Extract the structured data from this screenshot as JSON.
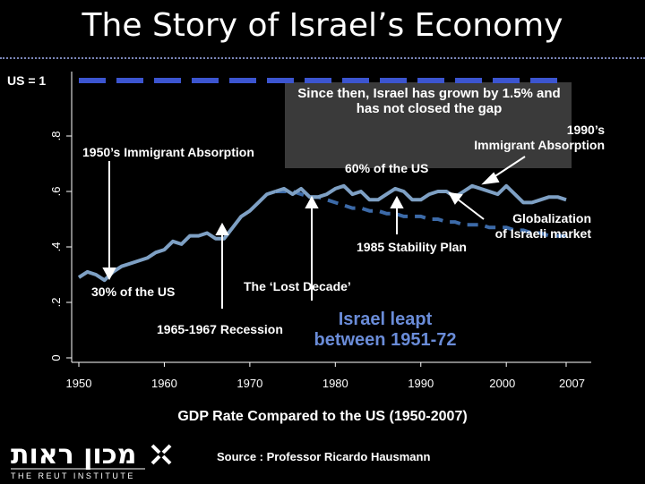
{
  "slide": {
    "title": "The Story of Israel’s Economy",
    "caption": "GDP Rate Compared to the US (1950-2007)",
    "source": "Source : Professor Ricardo Hausmann",
    "logo": {
      "hebrew_text": "מכון ראות",
      "english_text": "THE REUT INSTITUTE",
      "colors": {
        "text": "#ffffff",
        "accent": "#ffffff"
      }
    }
  },
  "annotations": {
    "us_label": "US = 1",
    "since_then": "Since then, Israel has grown by 1.5% and has not closed the gap",
    "immigrant_1990_line1": "1990’s",
    "immigrant_1990_line2": "Immigrant Absorption",
    "immigrant_1950": "1950’s Immigrant Absorption",
    "sixty_pct": "60% of the US",
    "globalization_line1": "Globalization",
    "globalization_line2": "of Israeli market",
    "stability_plan": "1985 Stability Plan",
    "thirty_pct": "30% of the US",
    "lost_decade": "The ‘Lost Decade’",
    "recession": "1965-1967 Recession",
    "leapt_line1": "Israel leapt",
    "leapt_line2": "between 1951-72"
  },
  "colors": {
    "background": "#000000",
    "israel_series": "#7ea0c4",
    "israel_dashed": "#3c6aa8",
    "us_line": "#3c55d0",
    "text": "#ffffff",
    "callout_box": "#3a3a3a",
    "leapt_text": "#6a8cd8"
  },
  "chart_data": {
    "type": "line",
    "title": "GDP Rate Compared to the US (1950-2007)",
    "xlabel": "",
    "ylabel": "",
    "xlim": [
      1950,
      2007
    ],
    "ylim": [
      0,
      1
    ],
    "x_ticks": [
      "1950",
      "1960",
      "1970",
      "1980",
      "1990",
      "2000",
      "2007"
    ],
    "x_tick_values": [
      1950,
      1960,
      1970,
      1980,
      1990,
      2000,
      2007
    ],
    "y_ticks": [
      "0",
      ".2",
      ".4",
      ".6",
      ".8"
    ],
    "y_tick_values": [
      0,
      0.2,
      0.4,
      0.6,
      0.8
    ],
    "grid": false,
    "legend": "none",
    "series": [
      {
        "name": "",
        "style": "solid",
        "x": [
          1950,
          1951,
          1952,
          1953,
          1954,
          1955,
          1956,
          1957,
          1958,
          1959,
          1960,
          1961,
          1962,
          1963,
          1964,
          1965,
          1966,
          1967,
          1968,
          1969,
          1970,
          1971,
          1972,
          1973
        ],
        "y": [
          0.29,
          0.31,
          0.3,
          0.28,
          0.31,
          0.33,
          0.34,
          0.35,
          0.36,
          0.38,
          0.39,
          0.42,
          0.41,
          0.44,
          0.44,
          0.45,
          0.43,
          0.43,
          0.47,
          0.51,
          0.53,
          0.56,
          0.59,
          0.6
        ]
      },
      {
        "name": "",
        "style": "dashed",
        "x": [
          1973,
          1974,
          1975,
          1976,
          1977,
          1978,
          1979,
          1980,
          1981,
          1982,
          1983,
          1984,
          1985,
          1986,
          1987,
          1988,
          1989,
          1990,
          1991,
          1992,
          1993,
          1994,
          1995,
          1996,
          1997,
          1998,
          1999,
          2000,
          2001,
          2002,
          2003,
          2004,
          2005,
          2006,
          2007
        ],
        "y": [
          0.6,
          0.6,
          0.6,
          0.59,
          0.58,
          0.58,
          0.57,
          0.56,
          0.55,
          0.54,
          0.54,
          0.53,
          0.53,
          0.52,
          0.52,
          0.51,
          0.51,
          0.51,
          0.5,
          0.5,
          0.49,
          0.49,
          0.48,
          0.48,
          0.48,
          0.47,
          0.47,
          0.47,
          0.46,
          0.46,
          0.45,
          0.45,
          0.44,
          0.44,
          0.44
        ]
      },
      {
        "name": "",
        "style": "solid",
        "x": [
          1973,
          1974,
          1975,
          1976,
          1977,
          1978,
          1979,
          1980,
          1981,
          1982,
          1983,
          1984,
          1985,
          1986,
          1987,
          1988,
          1989,
          1990,
          1991,
          1992,
          1993,
          1994,
          1995,
          1996,
          1997,
          1998,
          1999,
          2000,
          2001,
          2002,
          2003,
          2004,
          2005,
          2006,
          2007
        ],
        "y": [
          0.6,
          0.61,
          0.59,
          0.61,
          0.58,
          0.58,
          0.59,
          0.61,
          0.62,
          0.59,
          0.6,
          0.57,
          0.57,
          0.59,
          0.61,
          0.6,
          0.57,
          0.57,
          0.59,
          0.6,
          0.6,
          0.58,
          0.6,
          0.62,
          0.61,
          0.6,
          0.59,
          0.62,
          0.59,
          0.56,
          0.56,
          0.57,
          0.58,
          0.58,
          0.57
        ]
      },
      {
        "name": "US = 1",
        "style": "dashed",
        "x": [
          1950,
          2007
        ],
        "y": [
          1,
          1
        ]
      }
    ]
  }
}
